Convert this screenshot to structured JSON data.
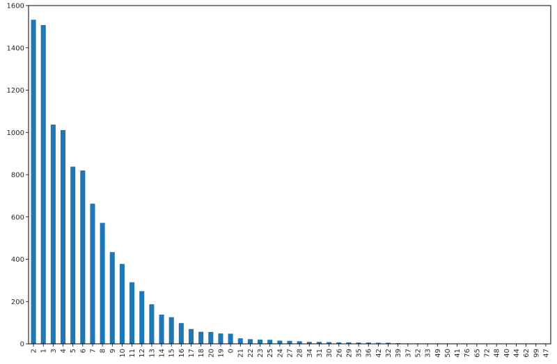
{
  "chart_data": {
    "type": "bar",
    "title": "",
    "xlabel": "",
    "ylabel": "",
    "categories": [
      "2",
      "1",
      "3",
      "4",
      "5",
      "6",
      "7",
      "8",
      "9",
      "10",
      "11",
      "12",
      "13",
      "14",
      "15",
      "16",
      "17",
      "18",
      "20",
      "19",
      "0",
      "21",
      "22",
      "23",
      "25",
      "24",
      "27",
      "28",
      "34",
      "31",
      "30",
      "26",
      "29",
      "35",
      "36",
      "42",
      "32",
      "39",
      "37",
      "52",
      "33",
      "49",
      "50",
      "41",
      "76",
      "65",
      "72",
      "48",
      "40",
      "44",
      "62",
      "99",
      "47"
    ],
    "values": [
      1533,
      1508,
      1037,
      1011,
      838,
      820,
      663,
      572,
      434,
      378,
      291,
      249,
      187,
      138,
      126,
      98,
      70,
      57,
      56,
      49,
      48,
      26,
      22,
      20,
      19,
      15,
      14,
      12,
      9,
      9,
      8,
      7,
      7,
      6,
      6,
      5,
      5,
      3,
      2,
      2,
      2,
      2,
      2,
      1,
      1,
      1,
      1,
      1,
      1,
      1,
      1,
      1,
      1
    ],
    "ylim": [
      0,
      1600
    ],
    "yticks": [
      0,
      200,
      400,
      600,
      800,
      1000,
      1200,
      1400,
      1600
    ],
    "grid": false,
    "bar_color": "#1f77b4"
  }
}
